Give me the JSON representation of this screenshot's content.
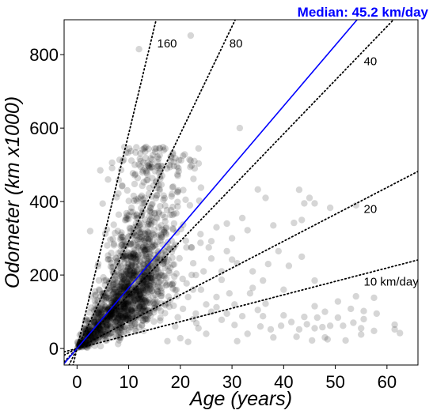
{
  "chart_data": {
    "type": "scatter",
    "title": "",
    "xlabel": "Age (years)",
    "ylabel": "Odometer (km x1000)",
    "xlim": [
      -2.5,
      66
    ],
    "ylim": [
      -45,
      895
    ],
    "xticks": [
      0,
      10,
      20,
      30,
      40,
      50,
      60
    ],
    "yticks": [
      0,
      200,
      400,
      600,
      800
    ],
    "grid": false,
    "point_color": "#000000",
    "point_alpha": 0.16,
    "median_color": "#0000ff",
    "median": {
      "slope_km_per_day": 45.2,
      "label": "Median: 45.2 km/day"
    },
    "reference_lines": [
      {
        "slope_km_per_day": 160,
        "label": "160",
        "label_at": [
          15.5,
          828
        ]
      },
      {
        "slope_km_per_day": 80,
        "label": "80",
        "label_at": [
          29.5,
          828
        ]
      },
      {
        "slope_km_per_day": 40,
        "label": "40",
        "label_at": [
          55.5,
          780
        ]
      },
      {
        "slope_km_per_day": 20,
        "label": "20",
        "label_at": [
          55.5,
          378
        ]
      },
      {
        "slope_km_per_day": 10,
        "label": "10 km/day",
        "label_at": [
          55.5,
          180
        ]
      }
    ],
    "cluster": {
      "count": 1650,
      "x_range": [
        0,
        24
      ],
      "x_mode": 10,
      "y_per_year_median": 16.5,
      "y_max": 550
    },
    "outliers": [
      [
        12,
        815
      ],
      [
        22,
        852
      ],
      [
        31.5,
        600
      ],
      [
        4.5,
        485
      ],
      [
        6,
        460
      ],
      [
        19.5,
        470
      ],
      [
        24,
        438
      ],
      [
        35,
        433
      ],
      [
        36.5,
        410
      ],
      [
        43,
        432
      ],
      [
        45,
        410
      ],
      [
        32,
        355
      ],
      [
        38,
        335
      ],
      [
        42,
        342
      ],
      [
        43.5,
        350
      ],
      [
        44,
        395
      ],
      [
        46,
        395
      ],
      [
        49,
        383
      ],
      [
        54,
        390
      ],
      [
        29,
        340
      ],
      [
        27,
        330
      ],
      [
        30,
        300
      ],
      [
        33,
        322
      ],
      [
        31,
        232
      ],
      [
        30,
        242
      ],
      [
        34,
        210
      ],
      [
        37,
        230
      ],
      [
        39,
        265
      ],
      [
        36,
        185
      ],
      [
        41,
        225
      ],
      [
        46,
        185
      ],
      [
        28,
        210
      ],
      [
        25.5,
        275
      ],
      [
        26,
        292
      ],
      [
        29,
        265
      ],
      [
        43.5,
        250
      ],
      [
        50.5,
        128
      ],
      [
        55.5,
        102
      ],
      [
        57.5,
        138
      ],
      [
        54,
        142
      ],
      [
        53,
        108
      ],
      [
        61.5,
        65
      ],
      [
        62.5,
        42
      ],
      [
        48,
        100
      ],
      [
        46.5,
        84
      ],
      [
        50.5,
        84
      ],
      [
        49,
        62
      ],
      [
        55,
        55
      ],
      [
        55.5,
        80
      ],
      [
        58,
        95
      ],
      [
        40,
        90
      ],
      [
        44,
        86
      ],
      [
        43,
        52
      ],
      [
        39.5,
        62
      ],
      [
        38,
        30
      ],
      [
        33,
        40
      ],
      [
        31,
        20
      ],
      [
        30.5,
        64
      ],
      [
        29,
        95
      ],
      [
        28,
        78
      ],
      [
        27,
        112
      ],
      [
        26,
        100
      ],
      [
        27,
        140
      ],
      [
        24,
        160
      ],
      [
        25,
        120
      ],
      [
        22.5,
        80
      ],
      [
        35,
        105
      ],
      [
        48.5,
        25
      ],
      [
        52,
        22
      ],
      [
        48,
        30
      ],
      [
        46,
        55
      ],
      [
        53.5,
        70
      ],
      [
        61.5,
        52
      ],
      [
        57.5,
        48
      ],
      [
        45.5,
        22
      ],
      [
        42.5,
        32
      ],
      [
        37.5,
        52
      ],
      [
        36,
        88
      ],
      [
        30.5,
        120
      ],
      [
        33.5,
        150
      ],
      [
        25,
        40
      ],
      [
        23,
        95
      ],
      [
        21.5,
        18
      ],
      [
        23.5,
        55
      ],
      [
        29.5,
        150
      ],
      [
        24.5,
        210
      ],
      [
        26,
        245
      ],
      [
        55,
        38
      ],
      [
        51.5,
        62
      ],
      [
        47.5,
        58
      ],
      [
        44.5,
        66
      ],
      [
        46,
        115
      ],
      [
        41.5,
        72
      ],
      [
        36.5,
        122
      ],
      [
        40,
        160
      ],
      [
        34,
        165
      ],
      [
        28,
        187
      ],
      [
        22.5,
        232
      ],
      [
        23,
        200
      ],
      [
        20.5,
        108
      ],
      [
        21.5,
        140
      ],
      [
        35.5,
        60
      ],
      [
        32,
        88
      ],
      [
        19,
        60
      ],
      [
        20,
        28
      ],
      [
        17.5,
        20
      ],
      [
        19.5,
        85
      ]
    ]
  }
}
